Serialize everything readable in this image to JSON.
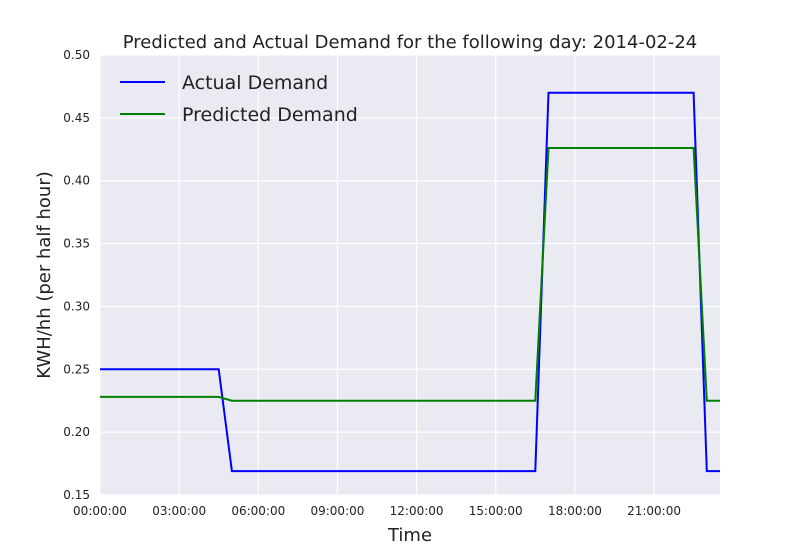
{
  "chart_data": {
    "type": "line",
    "title": "Predicted and Actual Demand for the following day: 2014-02-24",
    "xlabel": "Time",
    "ylabel": "KWH/hh (per half hour)",
    "x_unit": "hours",
    "xlim": [
      0,
      23.5
    ],
    "ylim": [
      0.15,
      0.5
    ],
    "x_ticks": [
      {
        "value": 0,
        "label": "00:00:00"
      },
      {
        "value": 3,
        "label": "03:00:00"
      },
      {
        "value": 6,
        "label": "06:00:00"
      },
      {
        "value": 9,
        "label": "09:00:00"
      },
      {
        "value": 12,
        "label": "12:00:00"
      },
      {
        "value": 15,
        "label": "15:00:00"
      },
      {
        "value": 18,
        "label": "18:00:00"
      },
      {
        "value": 21,
        "label": "21:00:00"
      }
    ],
    "y_ticks": [
      {
        "value": 0.15,
        "label": "0.15"
      },
      {
        "value": 0.2,
        "label": "0.20"
      },
      {
        "value": 0.25,
        "label": "0.25"
      },
      {
        "value": 0.3,
        "label": "0.30"
      },
      {
        "value": 0.35,
        "label": "0.35"
      },
      {
        "value": 0.4,
        "label": "0.40"
      },
      {
        "value": 0.45,
        "label": "0.45"
      },
      {
        "value": 0.5,
        "label": "0.50"
      }
    ],
    "grid": true,
    "legend_position": "top-left",
    "series": [
      {
        "name": "Actual Demand",
        "color": "#0000ff",
        "points": [
          [
            0,
            0.25
          ],
          [
            4.5,
            0.25
          ],
          [
            5.0,
            0.169
          ],
          [
            16.5,
            0.169
          ],
          [
            17.0,
            0.47
          ],
          [
            22.5,
            0.47
          ],
          [
            23.0,
            0.169
          ],
          [
            23.5,
            0.169
          ]
        ]
      },
      {
        "name": "Predicted Demand",
        "color": "#008000",
        "points": [
          [
            0,
            0.228
          ],
          [
            4.5,
            0.228
          ],
          [
            5.0,
            0.225
          ],
          [
            16.5,
            0.225
          ],
          [
            17.0,
            0.426
          ],
          [
            22.5,
            0.426
          ],
          [
            23.0,
            0.225
          ],
          [
            23.5,
            0.225
          ]
        ]
      }
    ]
  }
}
